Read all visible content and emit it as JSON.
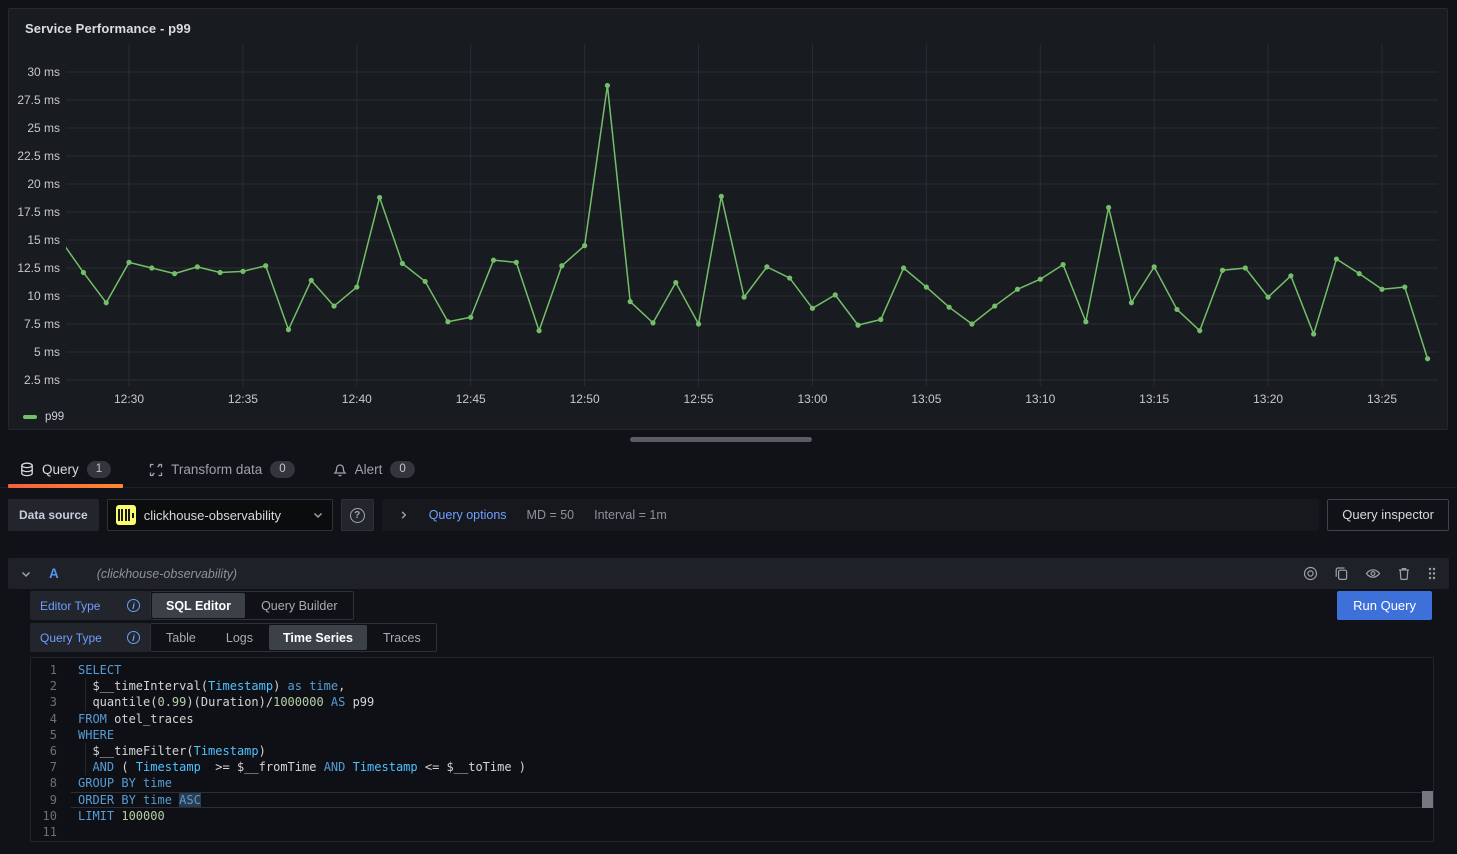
{
  "panel": {
    "title": "Service Performance - p99"
  },
  "chart_data": {
    "type": "line",
    "title": "Service Performance - p99",
    "x": [
      "12:27",
      "12:28",
      "12:29",
      "12:30",
      "12:31",
      "12:32",
      "12:33",
      "12:34",
      "12:35",
      "12:36",
      "12:37",
      "12:38",
      "12:39",
      "12:40",
      "12:41",
      "12:42",
      "12:43",
      "12:44",
      "12:45",
      "12:46",
      "12:47",
      "12:48",
      "12:49",
      "12:50",
      "12:51",
      "12:52",
      "12:53",
      "12:54",
      "12:55",
      "12:56",
      "12:57",
      "12:58",
      "12:59",
      "13:00",
      "13:01",
      "13:02",
      "13:03",
      "13:04",
      "13:05",
      "13:06",
      "13:07",
      "13:08",
      "13:09",
      "13:10",
      "13:11",
      "13:12",
      "13:13",
      "13:14",
      "13:15",
      "13:16",
      "13:17",
      "13:18",
      "13:19",
      "13:20",
      "13:21",
      "13:22",
      "13:23",
      "13:24",
      "13:25",
      "13:26",
      "13:27"
    ],
    "series": [
      {
        "name": "p99",
        "color": "#73BF69",
        "values": [
          15.0,
          12.1,
          9.4,
          13.0,
          12.5,
          12.0,
          12.6,
          12.1,
          12.2,
          12.7,
          7.0,
          11.4,
          9.1,
          10.8,
          18.8,
          12.9,
          11.3,
          7.7,
          8.1,
          13.2,
          13.0,
          6.9,
          12.7,
          14.5,
          28.8,
          9.5,
          7.6,
          11.2,
          7.5,
          18.9,
          9.9,
          12.6,
          11.6,
          8.9,
          10.1,
          7.4,
          7.9,
          12.5,
          10.8,
          9.0,
          7.5,
          9.1,
          10.6,
          11.5,
          12.8,
          7.7,
          17.9,
          9.4,
          12.6,
          8.8,
          6.9,
          12.3,
          12.5,
          9.9,
          11.8,
          6.6,
          13.3,
          12.0,
          10.6,
          10.8,
          4.4
        ]
      }
    ],
    "y_ticks": [
      "30 ms",
      "27.5 ms",
      "25 ms",
      "22.5 ms",
      "20 ms",
      "17.5 ms",
      "15 ms",
      "12.5 ms",
      "10 ms",
      "7.5 ms",
      "5 ms",
      "2.5 ms"
    ],
    "x_ticks": [
      "12:30",
      "12:35",
      "12:40",
      "12:45",
      "12:50",
      "12:55",
      "13:00",
      "13:05",
      "13:10",
      "13:15",
      "13:20",
      "13:25"
    ],
    "ylim": [
      2.5,
      30
    ],
    "y_unit": "ms",
    "grid": true,
    "legend_position": "bottom-left"
  },
  "tabs": [
    {
      "label": "Query",
      "count": "1"
    },
    {
      "label": "Transform data",
      "count": "0"
    },
    {
      "label": "Alert",
      "count": "0"
    }
  ],
  "toolbar": {
    "datasource_label": "Data source",
    "datasource_value": "clickhouse-observability",
    "query_options_label": "Query options",
    "query_options_md": "MD = 50",
    "query_options_interval": "Interval = 1m",
    "query_inspector_label": "Query inspector"
  },
  "query_row": {
    "ref_id": "A",
    "datasource_hint": "(clickhouse-observability)",
    "editor_type_label": "Editor Type",
    "editor_type_options": [
      "SQL Editor",
      "Query Builder"
    ],
    "query_type_label": "Query Type",
    "query_type_options": [
      "Table",
      "Logs",
      "Time Series",
      "Traces"
    ],
    "run_query_label": "Run Query"
  },
  "icons": {
    "help_glyph": "?",
    "info_glyph": "i"
  },
  "colors": {
    "accent_blue": "#3D71D9",
    "link_blue": "#6E9FFF",
    "series_green": "#73BF69",
    "tab_active_underline": "#FF780A",
    "clickhouse_yellow": "#FBFB6E"
  },
  "sql_editor": {
    "lines": [
      {
        "n": "1",
        "tokens": [
          [
            "SELECT",
            "kw"
          ]
        ]
      },
      {
        "n": "2",
        "indent": true,
        "tokens": [
          [
            "  $__timeInterval(",
            "def"
          ],
          [
            "Timestamp",
            "type"
          ],
          [
            ") ",
            "def"
          ],
          [
            "as time",
            "kw"
          ],
          [
            ",",
            "def"
          ]
        ]
      },
      {
        "n": "3",
        "indent": true,
        "tokens": [
          [
            "  quantile(",
            "def"
          ],
          [
            "0.99",
            "num"
          ],
          [
            ")(Duration)/",
            "def"
          ],
          [
            "1000000",
            "num"
          ],
          [
            " ",
            "def"
          ],
          [
            "AS",
            "kw"
          ],
          [
            " p99",
            "def"
          ]
        ]
      },
      {
        "n": "4",
        "tokens": [
          [
            "FROM",
            "kw"
          ],
          [
            " otel_traces",
            "def"
          ]
        ]
      },
      {
        "n": "5",
        "tokens": [
          [
            "WHERE",
            "kw"
          ]
        ]
      },
      {
        "n": "6",
        "indent": true,
        "tokens": [
          [
            "  $__timeFilter(",
            "def"
          ],
          [
            "Timestamp",
            "type"
          ],
          [
            ")",
            "def"
          ]
        ]
      },
      {
        "n": "7",
        "indent": true,
        "tokens": [
          [
            "  ",
            "def"
          ],
          [
            "AND",
            "kw"
          ],
          [
            " ( ",
            "def"
          ],
          [
            "Timestamp",
            "type"
          ],
          [
            "  >= $__fromTime ",
            "def"
          ],
          [
            "AND",
            "kw"
          ],
          [
            " ",
            "def"
          ],
          [
            "Timestamp",
            "type"
          ],
          [
            " <= $__toTime )",
            "def"
          ]
        ]
      },
      {
        "n": "8",
        "tokens": [
          [
            "GROUP BY time",
            "kw"
          ]
        ]
      },
      {
        "n": "9",
        "current": true,
        "tokens": [
          [
            "ORDER BY time ",
            "kw"
          ],
          [
            "ASC",
            "kwsel"
          ]
        ]
      },
      {
        "n": "10",
        "tokens": [
          [
            "LIMIT",
            "kw"
          ],
          [
            " ",
            "def"
          ],
          [
            "100000",
            "num"
          ]
        ]
      },
      {
        "n": "11",
        "tokens": []
      }
    ]
  }
}
